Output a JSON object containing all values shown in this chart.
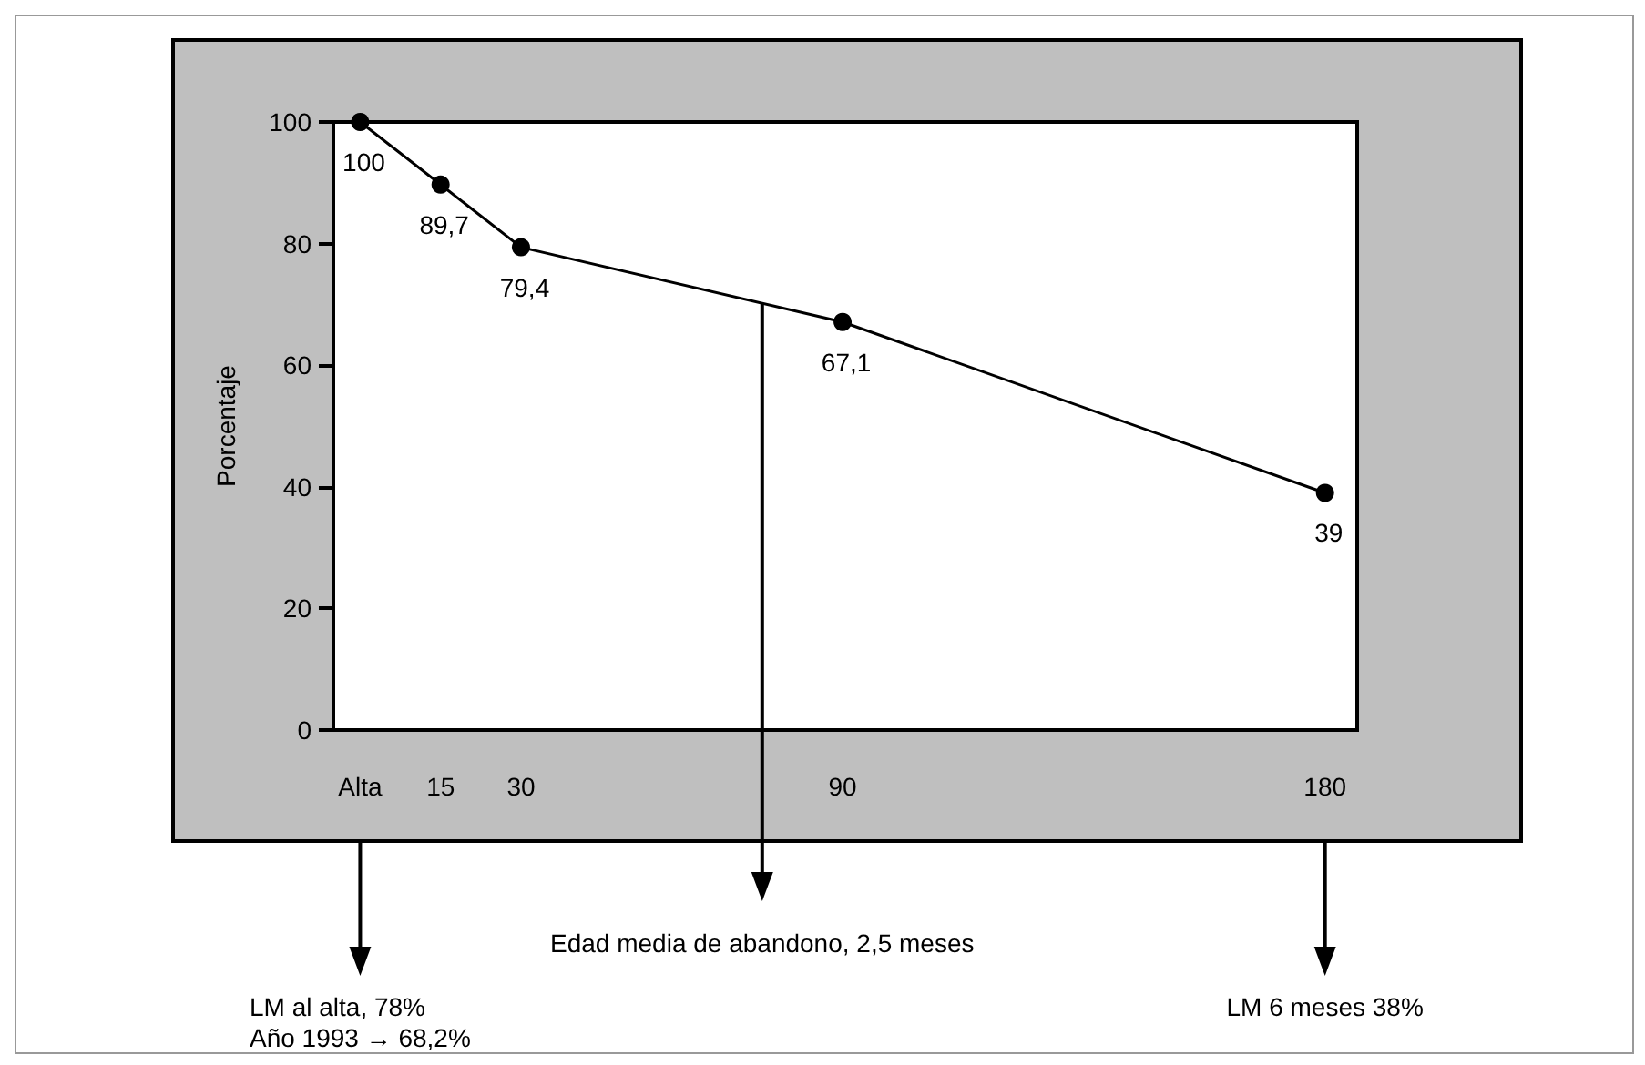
{
  "chart_data": {
    "type": "line",
    "ylabel": "Porcentaje",
    "x": [
      0,
      15,
      30,
      90,
      180
    ],
    "series": [
      {
        "color": "#000000",
        "values": [
          100,
          89.7,
          79.4,
          67.1,
          39
        ],
        "value_labels": [
          "100",
          "89,7",
          "79,4",
          "67,1",
          "39"
        ]
      }
    ],
    "xlim": [
      -5,
      186
    ],
    "xticks": [
      {
        "value": 0,
        "label": "Alta"
      },
      15,
      30,
      90,
      180
    ],
    "ylim": [
      0,
      100
    ],
    "yticks": [
      0,
      20,
      40,
      60,
      80,
      100
    ],
    "marker": "circle",
    "line_style": "solid",
    "ref_lines": [
      {
        "axis": "x",
        "value": 75,
        "label": "Edad media de abandono, 2,5 meses",
        "color": "#000000",
        "line_style": "solid"
      }
    ],
    "annotations": [
      "LM al alta, 78%\nAño 1993 → 68,2%",
      "LM 6 meses 38%"
    ]
  }
}
